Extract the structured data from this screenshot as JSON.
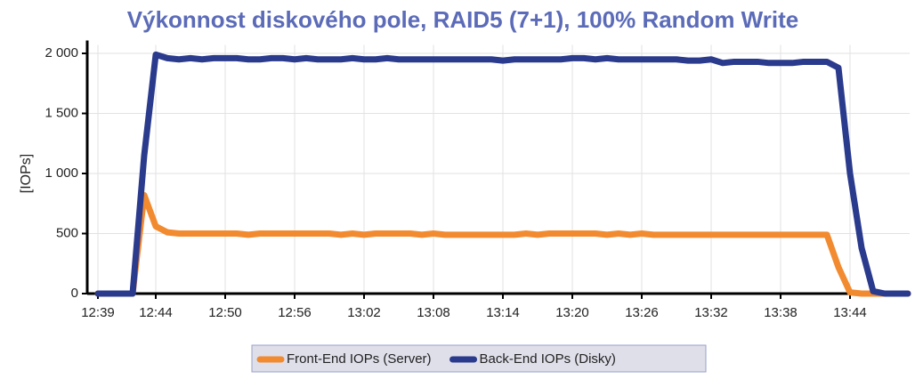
{
  "chart_data": {
    "type": "line",
    "title": "Výkonnost diskového pole, RAID5 (7+1), 100% Random Write",
    "y_label": "[IOPs]",
    "categories": [
      "12:39",
      null,
      null,
      null,
      null,
      "12:44",
      null,
      null,
      null,
      null,
      null,
      "12:50",
      null,
      null,
      null,
      null,
      null,
      "12:56",
      null,
      null,
      null,
      null,
      null,
      "13:02",
      null,
      null,
      null,
      null,
      null,
      "13:08",
      null,
      null,
      null,
      null,
      null,
      "13:14",
      null,
      null,
      null,
      null,
      null,
      "13:20",
      null,
      null,
      null,
      null,
      null,
      "13:26",
      null,
      null,
      null,
      null,
      null,
      "13:32",
      null,
      null,
      null,
      null,
      null,
      "13:38",
      null,
      null,
      null,
      null,
      null,
      "13:44",
      null,
      null,
      null,
      null,
      null
    ],
    "series": [
      {
        "name": "Front-End IOPs (Server)",
        "color": "#f28a30",
        "values": [
          0,
          0,
          0,
          0,
          820,
          560,
          510,
          500,
          500,
          500,
          500,
          500,
          500,
          490,
          500,
          500,
          500,
          500,
          500,
          500,
          500,
          490,
          500,
          490,
          500,
          500,
          500,
          500,
          490,
          500,
          490,
          490,
          490,
          490,
          490,
          490,
          490,
          500,
          490,
          500,
          500,
          500,
          500,
          500,
          490,
          500,
          490,
          500,
          490,
          490,
          490,
          490,
          490,
          490,
          490,
          490,
          490,
          490,
          490,
          490,
          490,
          490,
          490,
          490,
          220,
          10,
          0,
          0,
          0,
          0,
          0
        ]
      },
      {
        "name": "Back-End IOPs (Disky)",
        "color": "#2a3a8c",
        "values": [
          0,
          0,
          0,
          0,
          1150,
          1990,
          1960,
          1950,
          1960,
          1950,
          1960,
          1960,
          1960,
          1950,
          1950,
          1960,
          1960,
          1950,
          1960,
          1950,
          1950,
          1950,
          1960,
          1950,
          1950,
          1960,
          1950,
          1950,
          1950,
          1950,
          1950,
          1950,
          1950,
          1950,
          1950,
          1940,
          1950,
          1950,
          1950,
          1950,
          1950,
          1960,
          1960,
          1950,
          1960,
          1950,
          1950,
          1950,
          1950,
          1950,
          1950,
          1940,
          1940,
          1950,
          1920,
          1930,
          1930,
          1930,
          1920,
          1920,
          1920,
          1930,
          1930,
          1930,
          1880,
          1000,
          380,
          20,
          0,
          0,
          0
        ]
      }
    ],
    "ylim": [
      0,
      2070
    ],
    "yticks": [
      0,
      500,
      {
        "value": 1000,
        "label": "1 000"
      },
      {
        "value": 1500,
        "label": "1 500"
      },
      {
        "value": 2000,
        "label": "2 000"
      }
    ],
    "grid": true
  }
}
